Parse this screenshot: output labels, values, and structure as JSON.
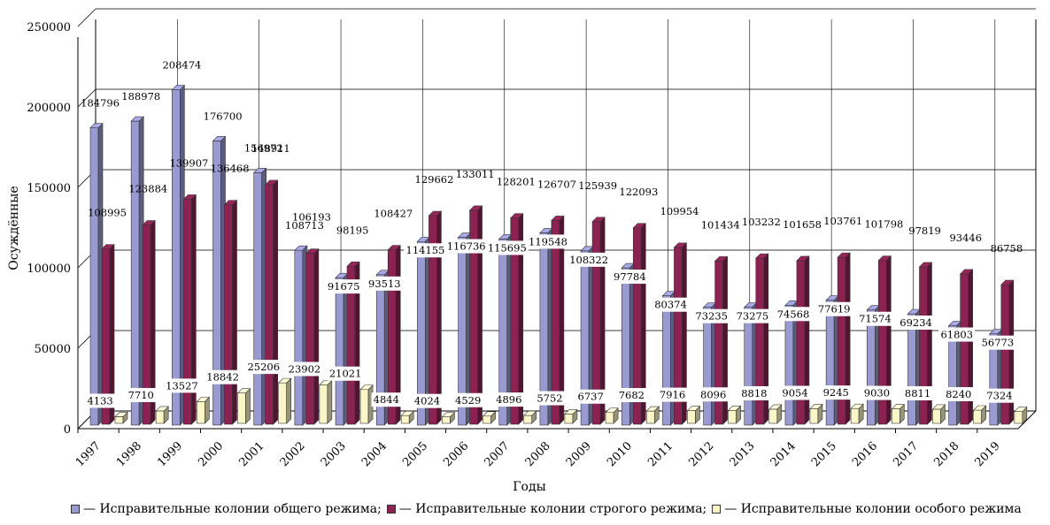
{
  "chart_data": {
    "type": "bar",
    "title": "",
    "xlabel": "Годы",
    "ylabel": "Осуждённые",
    "ylim": [
      0,
      250000
    ],
    "yticks": [
      "0",
      "50000",
      "100000",
      "150000",
      "200000",
      "250000"
    ],
    "categories": [
      "1997",
      "1998",
      "1999",
      "2000",
      "2001",
      "2002",
      "2003",
      "2004",
      "2005",
      "2006",
      "2007",
      "2008",
      "2009",
      "2010",
      "2011",
      "2012",
      "2013",
      "2014",
      "2015",
      "2016",
      "2017",
      "2018",
      "2019"
    ],
    "series": [
      {
        "name": "— Исправительные колонии общего режима;",
        "color": "#9a9ad2",
        "values": [
          184796,
          188978,
          208474,
          176700,
          156972,
          108713,
          91675,
          93513,
          114155,
          116736,
          115695,
          119548,
          108322,
          97784,
          80374,
          73235,
          73275,
          74568,
          77619,
          71574,
          69234,
          61803,
          56773
        ]
      },
      {
        "name": "— Исправительные колонии строгого режима;",
        "color": "#8b2252",
        "values": [
          108995,
          123884,
          139907,
          136468,
          148911,
          106193,
          98195,
          108427,
          129662,
          133011,
          128201,
          126707,
          125939,
          122093,
          109954,
          101434,
          103232,
          101658,
          103761,
          101798,
          97819,
          93446,
          86758
        ]
      },
      {
        "name": "— Исправительные колонии особого режима",
        "color": "#fbf6c8",
        "values": [
          4133,
          7710,
          13527,
          18842,
          25206,
          23902,
          21021,
          4844,
          4024,
          4529,
          4896,
          5752,
          6737,
          7682,
          7916,
          8096,
          8818,
          9054,
          9245,
          9030,
          8811,
          8240,
          7324
        ]
      }
    ],
    "grid": true,
    "legend_position": "bottom"
  }
}
